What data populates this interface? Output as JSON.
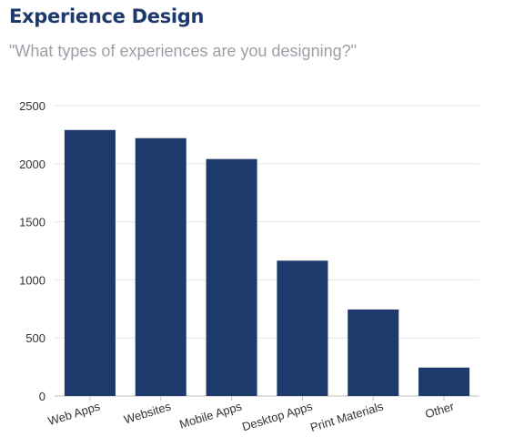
{
  "header": {
    "title": "Experience Design",
    "subtitle": "\"What types of experiences are you designing?\""
  },
  "colors": {
    "bar": "#1e3a6d",
    "title": "#1e3a6d",
    "subtitle": "#9a9ea6",
    "grid": "#e6e6e6",
    "tick_text": "#333333"
  },
  "chart_data": {
    "type": "bar",
    "categories": [
      "Web Apps",
      "Websites",
      "Mobile Apps",
      "Desktop Apps",
      "Print Materials",
      "Other"
    ],
    "values": [
      2290,
      2220,
      2040,
      1165,
      745,
      245
    ],
    "ylim": [
      0,
      2500
    ],
    "yticks": [
      0,
      500,
      1000,
      1500,
      2000,
      2500
    ],
    "grid": true,
    "legend": "none"
  }
}
